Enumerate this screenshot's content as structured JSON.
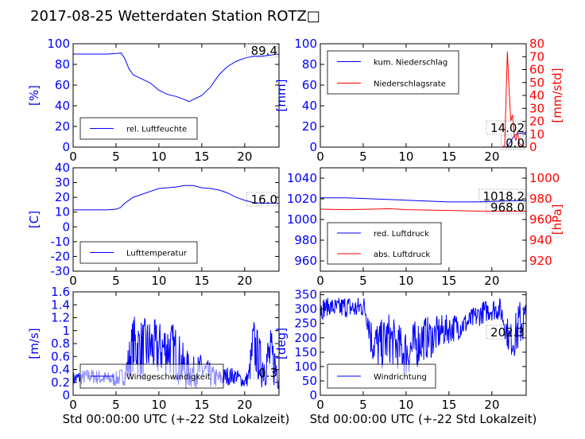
{
  "title": "2017-08-25 Wetterdaten Station ROTZ□",
  "colors": {
    "primary": "#0000ff",
    "secondary": "#ff0000",
    "axis": "#000000"
  },
  "chart_data": [
    {
      "type": "line",
      "xlim": [
        0,
        24
      ],
      "ylim": [
        0,
        100
      ],
      "xticks": [
        0,
        5,
        10,
        15,
        20
      ],
      "yticks": [
        0,
        20,
        40,
        60,
        80,
        100
      ],
      "ylabel": "[%]",
      "last_value": "89.4",
      "legend_loc": "lower-left",
      "series": [
        {
          "name": "rel. Luftfeuchte",
          "color": "#0000ff",
          "x": [
            0,
            2,
            4,
            5,
            5.6,
            6,
            6.5,
            7,
            8,
            9,
            10,
            11,
            12,
            13,
            13.5,
            14,
            15,
            16,
            17,
            18,
            19,
            20,
            21,
            22,
            23,
            24
          ],
          "y": [
            90,
            90,
            90,
            90.5,
            91,
            86,
            76,
            70,
            66,
            62,
            55,
            51,
            49,
            46,
            44,
            46,
            50,
            58,
            70,
            78,
            83,
            86,
            88,
            88,
            89,
            90
          ]
        }
      ]
    },
    {
      "type": "line",
      "xlim": [
        0,
        24
      ],
      "ylim": [
        0,
        100
      ],
      "y2lim": [
        0,
        80
      ],
      "xticks": [
        0,
        5,
        10,
        15,
        20
      ],
      "yticks": [
        0,
        20,
        40,
        60,
        80,
        100
      ],
      "y2ticks": [
        0,
        10,
        20,
        30,
        40,
        50,
        60,
        70,
        80
      ],
      "ylabel": "[mm]",
      "y2label": "[mm/std]",
      "last_values": [
        "14.02",
        "0.0"
      ],
      "legend_loc": "upper-left",
      "series": [
        {
          "name": "kum. Niederschlag",
          "color": "#0000ff",
          "axis": "left",
          "x": [
            0,
            20,
            21.5,
            21.8,
            22,
            22.3,
            22.6,
            23,
            23.5,
            24
          ],
          "y": [
            0,
            0,
            0,
            0.5,
            3,
            7,
            11,
            13,
            13.8,
            14
          ]
        },
        {
          "name": "Niederschlagsrate",
          "color": "#ff0000",
          "axis": "right",
          "x": [
            0,
            20,
            21.2,
            21.5,
            21.8,
            22,
            22.2,
            22.4,
            22.6,
            22.8,
            23,
            23.2,
            23.5,
            24
          ],
          "y": [
            0,
            0,
            0,
            1,
            74,
            46,
            20,
            25,
            10,
            5,
            12,
            3,
            1,
            0
          ]
        }
      ]
    },
    {
      "type": "line",
      "xlim": [
        0,
        24
      ],
      "ylim": [
        -30,
        40
      ],
      "xticks": [
        0,
        5,
        10,
        15,
        20
      ],
      "yticks": [
        -30,
        -20,
        -10,
        0,
        10,
        20,
        30,
        40
      ],
      "ylabel": "[C]",
      "last_value": "16.0",
      "legend_loc": "lower-left",
      "series": [
        {
          "name": "Lufttemperatur",
          "color": "#0000ff",
          "x": [
            0,
            2,
            4,
            5,
            5.5,
            6,
            7,
            8,
            9,
            10,
            11,
            12,
            13,
            14,
            15,
            16,
            17,
            18,
            19,
            20,
            21,
            22,
            23,
            24
          ],
          "y": [
            11.5,
            11.5,
            11.5,
            12,
            13,
            16,
            20,
            22,
            24,
            26,
            26.5,
            27,
            28,
            28,
            26.5,
            26,
            25,
            23,
            20,
            18,
            16.5,
            16,
            16,
            16
          ]
        }
      ]
    },
    {
      "type": "line",
      "xlim": [
        0,
        24
      ],
      "ylim": [
        950,
        1050
      ],
      "y2lim": [
        910,
        1010
      ],
      "xticks": [
        0,
        5,
        10,
        15,
        20
      ],
      "yticks": [
        960,
        980,
        1000,
        1020,
        1040
      ],
      "y2ticks": [
        920,
        940,
        960,
        980,
        1000
      ],
      "ylabel": "",
      "y2label": "[hPa]",
      "last_values": [
        "1018.2",
        "968.0"
      ],
      "legend_loc": "lower-left",
      "series": [
        {
          "name": "red. Luftdruck",
          "color": "#0000ff",
          "axis": "left",
          "x": [
            0,
            3,
            6,
            9,
            12,
            15,
            18,
            20,
            22,
            24
          ],
          "y": [
            1021,
            1021,
            1020,
            1019,
            1018,
            1017,
            1017,
            1017.5,
            1018,
            1018.2
          ]
        },
        {
          "name": "abs. Luftdruck",
          "color": "#ff0000",
          "axis": "right",
          "x": [
            0,
            3,
            6,
            8,
            10,
            13,
            16,
            19,
            22,
            24
          ],
          "y": [
            970,
            969.5,
            970,
            970.5,
            969.5,
            969,
            968.5,
            968,
            968,
            968
          ]
        }
      ]
    },
    {
      "type": "line",
      "xlim": [
        0,
        24
      ],
      "ylim": [
        0,
        1.6
      ],
      "xticks": [
        0,
        5,
        10,
        15,
        20
      ],
      "yticks": [
        0,
        0.2,
        0.4,
        0.6,
        0.8,
        1.0,
        1.2,
        1.4,
        1.6
      ],
      "ylabel": "[m/s]",
      "xlabel": "Std 00:00:00 UTC (+-22 Std Lokalzeit)",
      "last_value": "0.3",
      "legend_loc": "lower-left",
      "series": [
        {
          "name": "Windgeschwindigkeit",
          "color": "#0000ff",
          "style": "noisy",
          "x": [
            0,
            2,
            4,
            5,
            6,
            6.5,
            7,
            8,
            9,
            10,
            11,
            12,
            13,
            14,
            15,
            16,
            17,
            18,
            19,
            20,
            20.5,
            21,
            22,
            23,
            24
          ],
          "y": [
            0.25,
            0.3,
            0.25,
            0.25,
            0.3,
            0.5,
            0.8,
            0.7,
            0.75,
            0.7,
            0.75,
            0.65,
            0.4,
            0.35,
            0.4,
            0.3,
            0.25,
            0.3,
            0.3,
            0.2,
            0.3,
            0.8,
            0.45,
            0.6,
            0.35
          ],
          "amp": [
            0.12,
            0.12,
            0.12,
            0.12,
            0.15,
            0.35,
            0.45,
            0.5,
            0.45,
            0.45,
            0.45,
            0.45,
            0.35,
            0.25,
            0.25,
            0.2,
            0.15,
            0.15,
            0.12,
            0.1,
            0.15,
            0.45,
            0.35,
            0.45,
            0.3
          ]
        }
      ]
    },
    {
      "type": "line",
      "xlim": [
        0,
        24
      ],
      "ylim": [
        0,
        360
      ],
      "xticks": [
        0,
        5,
        10,
        15,
        20
      ],
      "yticks": [
        0,
        50,
        100,
        150,
        200,
        250,
        300,
        350
      ],
      "ylabel": "[deg]",
      "xlabel": "Std 00:00:00 UTC (+-22 Std Lokalzeit)",
      "last_value": "202.3",
      "legend_loc": "lower-left",
      "series": [
        {
          "name": "Windrichtung",
          "color": "#0000ff",
          "style": "noisy",
          "x": [
            0,
            1,
            2,
            3,
            4,
            5,
            5.5,
            6,
            7,
            8,
            9,
            10,
            11,
            12,
            13,
            14,
            15,
            16,
            17,
            18,
            19,
            20,
            21,
            22,
            22.5,
            23,
            23.5,
            24
          ],
          "y": [
            300,
            310,
            300,
            310,
            300,
            310,
            280,
            190,
            170,
            200,
            170,
            150,
            170,
            200,
            200,
            220,
            230,
            240,
            250,
            270,
            290,
            300,
            300,
            200,
            190,
            230,
            260,
            250
          ],
          "amp": [
            40,
            30,
            40,
            40,
            40,
            40,
            60,
            80,
            90,
            90,
            80,
            90,
            90,
            80,
            70,
            60,
            50,
            50,
            40,
            40,
            40,
            40,
            40,
            60,
            60,
            90,
            90,
            90
          ]
        }
      ]
    }
  ]
}
